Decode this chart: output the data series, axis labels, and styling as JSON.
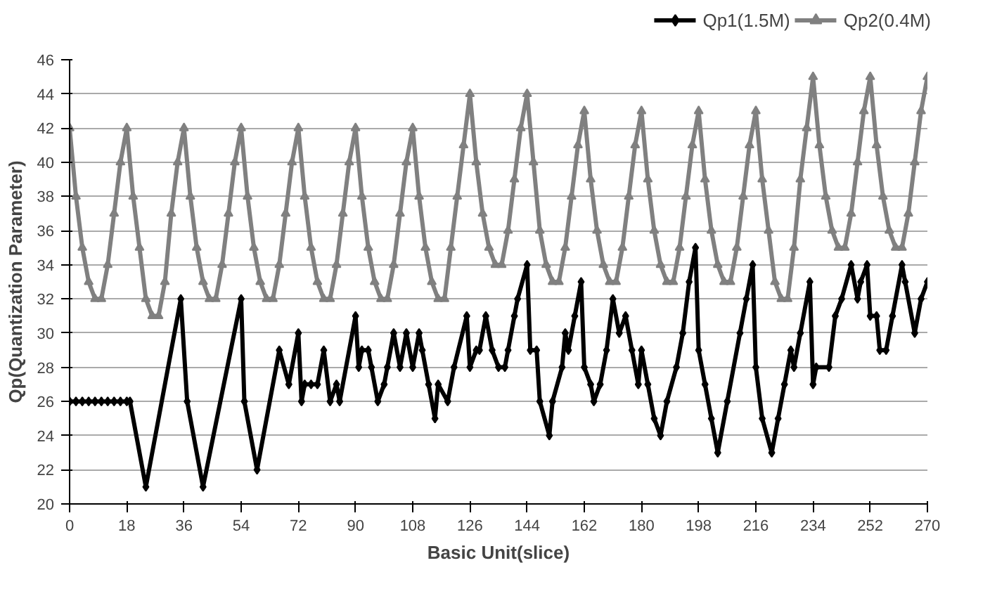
{
  "chart_data": {
    "type": "line",
    "xlabel": "Basic Unit(slice)",
    "ylabel": "Qp(Quantization Parameter)",
    "xlim": [
      0,
      270
    ],
    "xticks": [
      0,
      18,
      36,
      54,
      72,
      90,
      108,
      126,
      144,
      162,
      180,
      198,
      216,
      234,
      252,
      270
    ],
    "ylim": [
      20,
      46
    ],
    "yticks": [
      20,
      22,
      24,
      26,
      28,
      30,
      32,
      34,
      36,
      38,
      40,
      42,
      44,
      46
    ],
    "grid": "y",
    "legend": "top right",
    "line_style": "solid",
    "series": [
      {
        "name": "Qp1(1.5M)",
        "color": "#000000",
        "marker": "diamond",
        "x": [
          0,
          2,
          4,
          6,
          8,
          10,
          12,
          14,
          16,
          18,
          19,
          24,
          35,
          37,
          42,
          54,
          55,
          59,
          66,
          69,
          72,
          73,
          74,
          76,
          78,
          80,
          82,
          84,
          85,
          90,
          91,
          92,
          94,
          95,
          97,
          99,
          100,
          102,
          104,
          106,
          108,
          110,
          111,
          113,
          115,
          116,
          119,
          121,
          125,
          126,
          128,
          129,
          131,
          133,
          135,
          137,
          138,
          140,
          141,
          144,
          145,
          147,
          148,
          151,
          152,
          155,
          156,
          157,
          159,
          161,
          162,
          164,
          165,
          167,
          169,
          171,
          173,
          175,
          177,
          179,
          180,
          182,
          184,
          186,
          188,
          191,
          193,
          195,
          197,
          198,
          200,
          202,
          204,
          207,
          211,
          213,
          215,
          216,
          218,
          221,
          223,
          225,
          227,
          228,
          230,
          233,
          234,
          235,
          239,
          241,
          243,
          246,
          248,
          249,
          251,
          252,
          254,
          255,
          257,
          259,
          262,
          263,
          266,
          268,
          270
        ],
        "values": [
          26,
          26,
          26,
          26,
          26,
          26,
          26,
          26,
          26,
          26,
          26,
          21,
          32,
          26,
          21,
          32,
          26,
          22,
          29,
          27,
          30,
          26,
          27,
          27,
          27,
          29,
          26,
          27,
          26,
          31,
          28,
          29,
          29,
          28,
          26,
          27,
          28,
          30,
          28,
          30,
          28,
          30,
          29,
          27,
          25,
          27,
          26,
          28,
          31,
          28,
          29,
          29,
          31,
          29,
          28,
          28,
          29,
          31,
          32,
          34,
          29,
          29,
          26,
          24,
          26,
          28,
          30,
          29,
          31,
          33,
          28,
          27,
          26,
          27,
          29,
          32,
          30,
          31,
          29,
          27,
          29,
          27,
          25,
          24,
          26,
          28,
          30,
          33,
          35,
          29,
          27,
          25,
          23,
          26,
          30,
          32,
          34,
          28,
          25,
          23,
          25,
          27,
          29,
          28,
          30,
          33,
          27,
          28,
          28,
          31,
          32,
          34,
          32,
          33,
          34,
          31,
          31,
          29,
          29,
          31,
          34,
          33,
          30,
          32,
          33
        ]
      },
      {
        "name": "Qp2(0.4M)",
        "color": "#808080",
        "marker": "triangle",
        "x": [
          0,
          2,
          4,
          6,
          8,
          10,
          12,
          14,
          16,
          18,
          20,
          22,
          24,
          26,
          28,
          30,
          32,
          34,
          36,
          38,
          40,
          42,
          44,
          46,
          48,
          50,
          52,
          54,
          56,
          58,
          60,
          62,
          64,
          66,
          68,
          70,
          72,
          74,
          76,
          78,
          80,
          82,
          84,
          86,
          88,
          90,
          92,
          94,
          96,
          98,
          100,
          102,
          104,
          106,
          108,
          110,
          112,
          114,
          116,
          118,
          120,
          122,
          124,
          126,
          128,
          130,
          132,
          134,
          136,
          138,
          140,
          142,
          144,
          146,
          148,
          150,
          152,
          154,
          156,
          158,
          160,
          162,
          164,
          166,
          168,
          170,
          172,
          174,
          176,
          178,
          180,
          182,
          184,
          186,
          188,
          190,
          192,
          194,
          196,
          198,
          200,
          202,
          204,
          206,
          208,
          210,
          212,
          214,
          216,
          218,
          220,
          222,
          224,
          226,
          228,
          230,
          232,
          234,
          236,
          238,
          240,
          242,
          244,
          246,
          248,
          250,
          252,
          254,
          256,
          258,
          260,
          262,
          264,
          266,
          268,
          270
        ],
        "values": [
          42,
          38,
          35,
          33,
          32,
          32,
          34,
          37,
          40,
          42,
          38,
          35,
          32,
          31,
          31,
          33,
          37,
          40,
          42,
          38,
          35,
          33,
          32,
          32,
          34,
          37,
          40,
          42,
          38,
          35,
          33,
          32,
          32,
          34,
          37,
          40,
          42,
          38,
          35,
          33,
          32,
          32,
          34,
          37,
          40,
          42,
          38,
          35,
          33,
          32,
          32,
          34,
          37,
          40,
          42,
          38,
          35,
          33,
          32,
          32,
          35,
          38,
          41,
          44,
          40,
          37,
          35,
          34,
          34,
          36,
          39,
          42,
          44,
          40,
          36,
          34,
          33,
          33,
          35,
          38,
          41,
          43,
          39,
          36,
          34,
          33,
          33,
          35,
          38,
          41,
          43,
          39,
          36,
          34,
          33,
          33,
          35,
          38,
          41,
          43,
          39,
          36,
          34,
          33,
          33,
          35,
          38,
          41,
          43,
          39,
          36,
          33,
          32,
          32,
          35,
          39,
          42,
          45,
          41,
          38,
          36,
          35,
          35,
          37,
          40,
          43,
          45,
          41,
          38,
          36,
          35,
          35,
          37,
          40,
          43,
          45
        ]
      }
    ]
  }
}
